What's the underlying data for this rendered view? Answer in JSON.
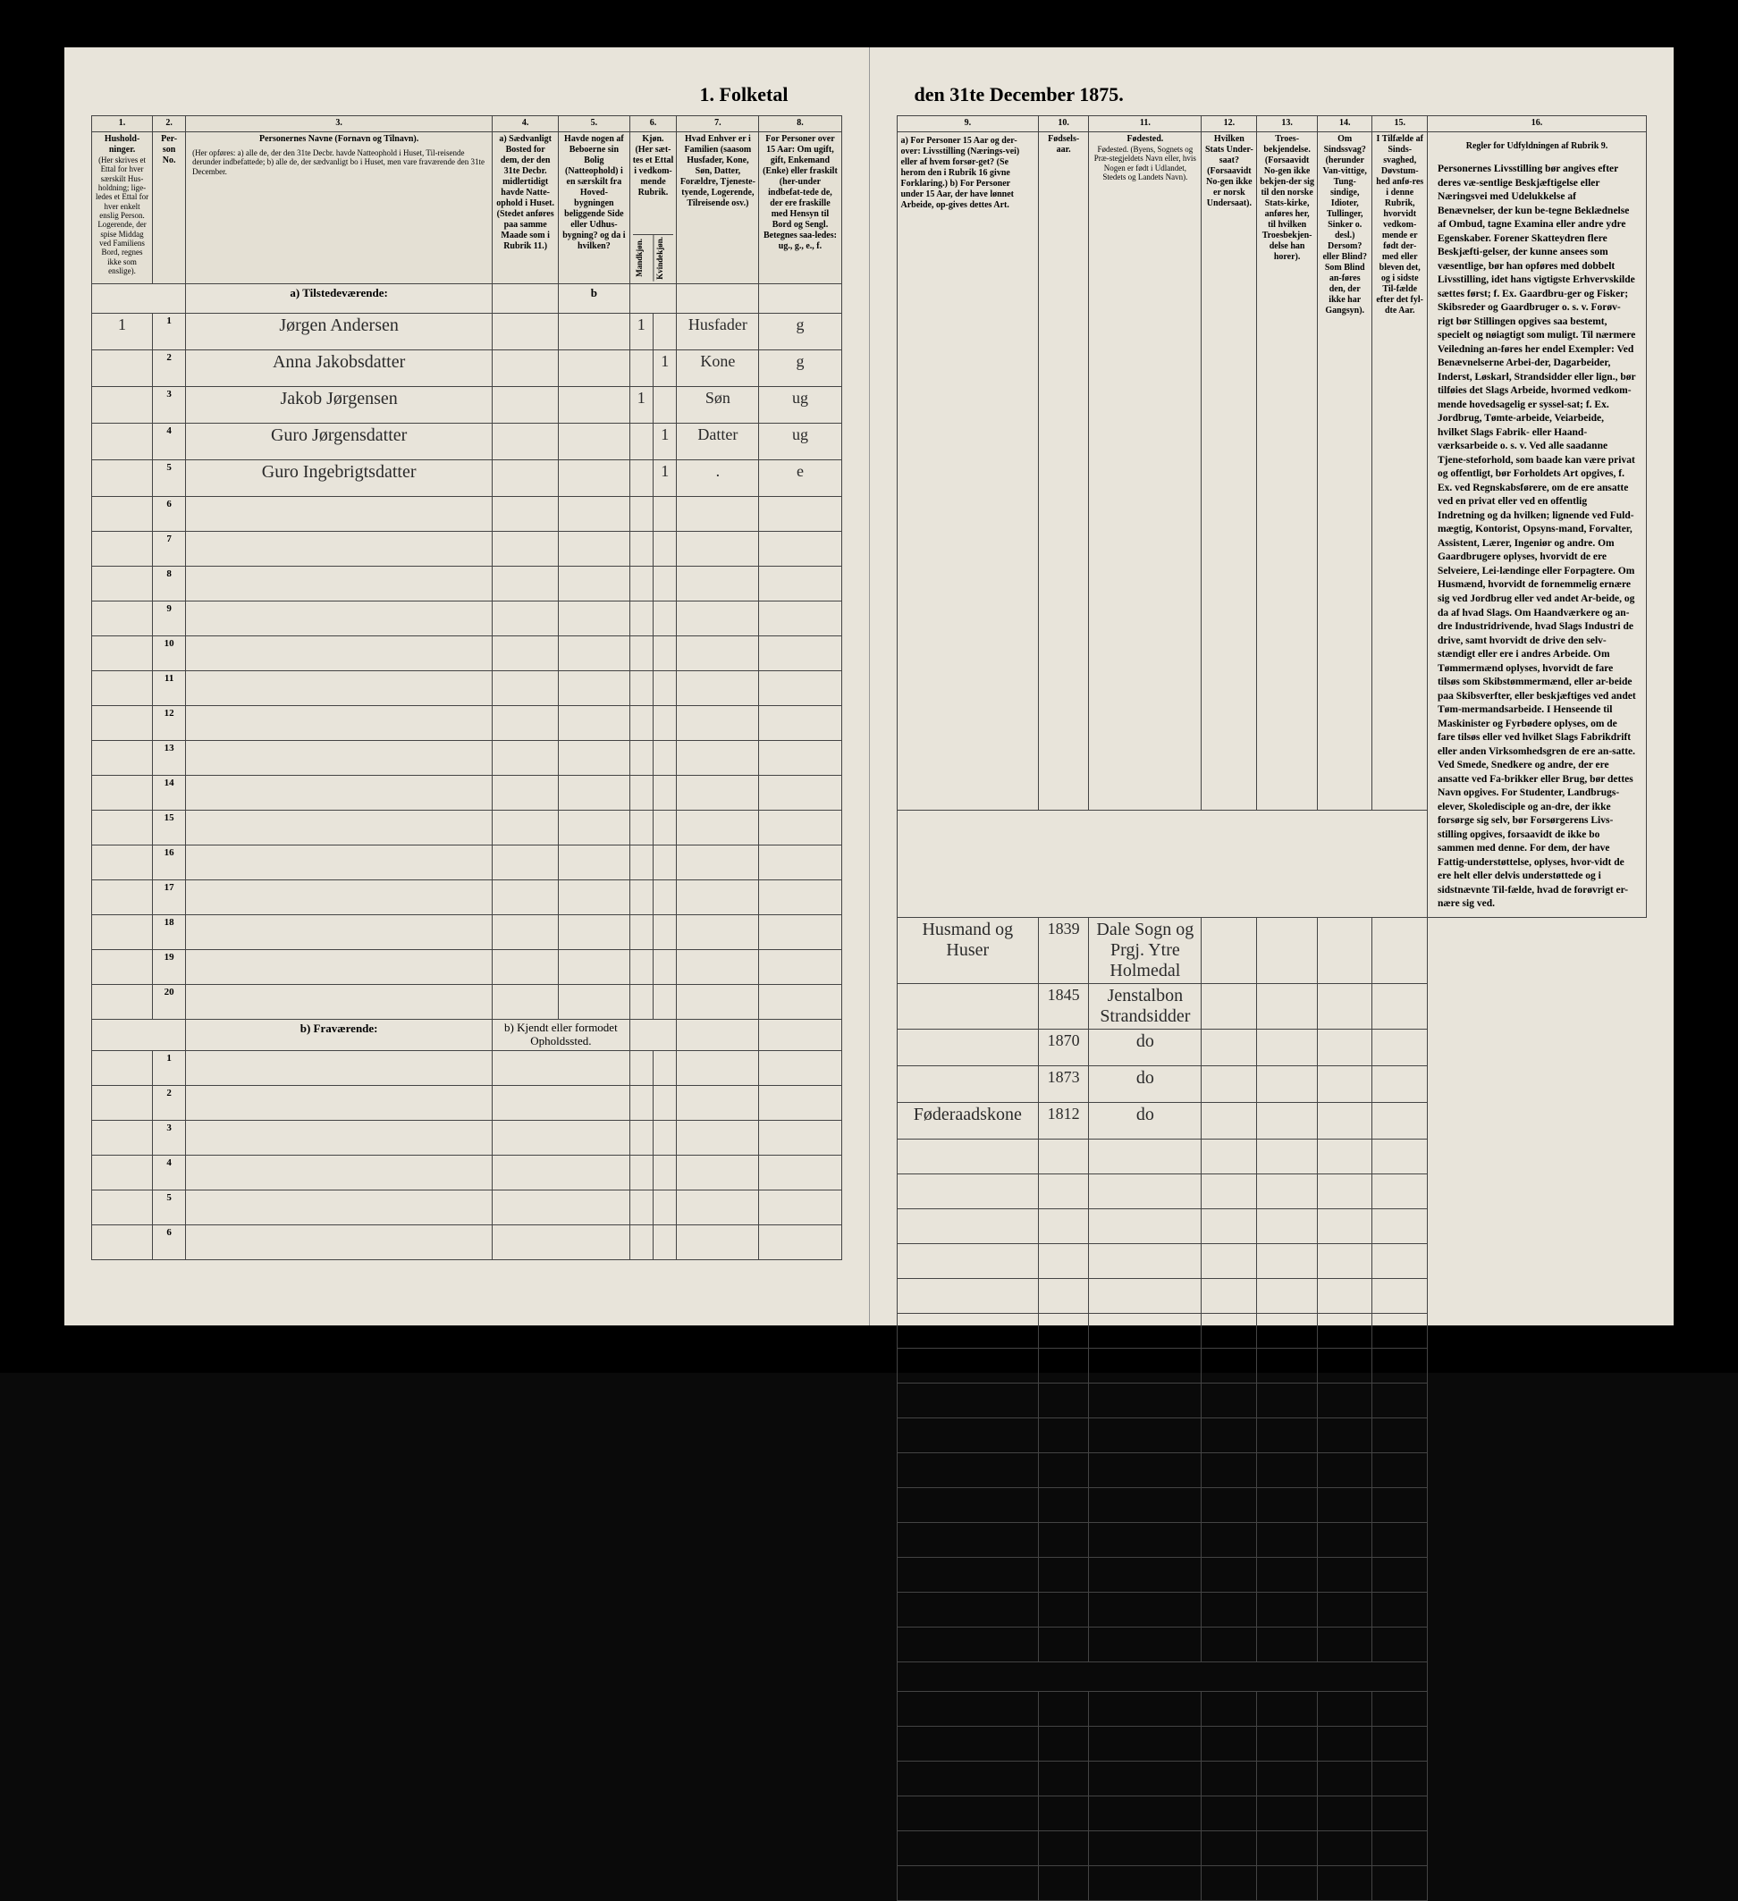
{
  "title_left": "1. Folketal",
  "title_right": "den 31te December 1875.",
  "left_cols": [
    "1.",
    "2.",
    "3.",
    "4.",
    "5.",
    "6.",
    "7.",
    "8."
  ],
  "right_cols": [
    "9.",
    "10.",
    "11.",
    "12.",
    "13.",
    "14.",
    "15.",
    "16."
  ],
  "headers_left": {
    "c1": "Hushold-\nninger.",
    "c1_sub": "(Her skrives et Ettal for hver særskilt Hus-holdning; lige-ledes et Ettal for hver enkelt enslig Person. Logerende, der spise Middag ved Familiens Bord, regnes ikke som enslige).",
    "c2": "Per-son No.",
    "c3": "Personernes Navne (Fornavn og Tilnavn).",
    "c3_sub": "(Her opføres:\na) alle de, der den 31te Decbr. havde Natteophold i Huset, Til-reisende derunder indbefattede;\nb) alle de, der sædvanligt bo i Huset, men vare fraværende den 31te December.",
    "c4": "a) Sædvanligt Bosted for dem, der den 31te Decbr. midlertidigt havde Natte-ophold i Huset. (Stedet anføres paa samme Maade som i Rubrik 11.)",
    "c5": "Havde nogen af Beboerne sin Bolig (Natteophold) i en særskilt fra Hoved-bygningen beliggende Side eller Udhus-bygning? og da i hvilken?",
    "c6": "Kjøn.\n(Her sæt-tes et Ettal i vedkom-mende Rubrik.",
    "c6a": "Mandkjøn.",
    "c6b": "Kvindekjøn.",
    "c7": "Hvad Enhver er i Familien\n(saasom Husfader, Kone, Søn, Datter, Forældre, Tjeneste-tyende, Logerende, Tilreisende osv.)",
    "c8": "For Personer over 15 Aar: Om ugift, gift, Enkemand (Enke) eller fraskilt (her-under indbefat-tede de, der ere fraskille med Hensyn til Bord og Sengl. Betegnes saa-ledes: ug., g., e., f."
  },
  "headers_right": {
    "c9": "a) For Personer 15 Aar og der-over: Livsstilling (Nærings-vei) eller af hvem forsør-get? (Se herom den i Rubrik 16 givne Forklaring.)\nb) For Personer under 15 Aar, der have lønnet Arbeide, op-gives dettes Art.",
    "c10": "Fødsels-aar.",
    "c11": "Fødested.\n(Byens, Sognets og Præ-stegjeldets Navn eller, hvis Nogen er født i Udlandet, Stedets og Landets Navn).",
    "c12": "Hvilken Stats Under-saat?\n(Forsaavidt No-gen ikke er norsk Undersaat).",
    "c13": "Troes-bekjendelse.\n(Forsaavidt No-gen ikke bekjen-der sig til den norske Stats-kirke, anføres her, til hvilken Troesbekjen-delse han horer).",
    "c14": "Om Sindssvag? (herunder Van-vittige, Tung-sindige, Idioter, Tullinger, Sinker o. desl.) Dersom? eller Blind? Som Blind an-føres den, der ikke har Gangsyn).",
    "c15": "I Tilfælde af Sinds-svaghed, Døvstum-hed anfø-res i denne Rubrik, hvorvidt vedkom-mende er født der-med eller bleven det, og i sidste Til-fælde efter det fyl-dte Aar.",
    "c16_title": "Regler for Udfyldningen\naf\nRubrik 9."
  },
  "section_a": "a) Tilstedeværende:",
  "section_b": "b) Fraværende:",
  "section_b_col4": "b) Kjendt eller formodet Opholdssted.",
  "rows": [
    {
      "n": "1",
      "hh": "1",
      "name": "Jørgen Andersen",
      "m": "1",
      "k": "",
      "fam": "Husfader",
      "civ": "g",
      "occ": "Husmand og Huser",
      "yr": "1839",
      "bp": "Dale Sogn og Prgj. Ytre Holmedal"
    },
    {
      "n": "2",
      "hh": "",
      "name": "Anna Jakobsdatter",
      "m": "",
      "k": "1",
      "fam": "Kone",
      "civ": "g",
      "occ": "",
      "yr": "1845",
      "bp": "Jenstalbon Strandsidder"
    },
    {
      "n": "3",
      "hh": "",
      "name": "Jakob Jørgensen",
      "m": "1",
      "k": "",
      "fam": "Søn",
      "civ": "ug",
      "occ": "",
      "yr": "1870",
      "bp": "do"
    },
    {
      "n": "4",
      "hh": "",
      "name": "Guro Jørgensdatter",
      "m": "",
      "k": "1",
      "fam": "Datter",
      "civ": "ug",
      "occ": "",
      "yr": "1873",
      "bp": "do"
    },
    {
      "n": "5",
      "hh": "",
      "name": "Guro Ingebrigtsdatter",
      "m": "",
      "k": "1",
      "fam": ".",
      "civ": "e",
      "occ": "Føderaadskone",
      "yr": "1812",
      "bp": "do"
    }
  ],
  "empty_left": [
    "6",
    "7",
    "8",
    "9",
    "10",
    "11",
    "12",
    "13",
    "14",
    "15",
    "16",
    "17",
    "18",
    "19",
    "20"
  ],
  "empty_b": [
    "1",
    "2",
    "3",
    "4",
    "5",
    "6"
  ],
  "rules_text": "Personernes Livsstilling bør angives efter deres væ-sentlige Beskjæftigelse eller Næringsvei med Udelukkelse af Benævnelser, der kun be-tegne Beklædnelse af Ombud, tagne Examina eller andre ydre Egenskaber. Forener Skatteydren flere Beskjæfti-gelser, der kunne ansees som væsentlige, bør han opføres med dobbelt Livsstilling, idet hans vigtigste Erhvervskilde sættes først; f. Ex. Gaardbru-ger og Fisker; Skibsreder og Gaardbruger o. s. v. Forøv-rigt bør Stillingen opgives saa bestemt, specielt og nøiagtigt som muligt.\n\nTil nærmere Veiledning an-føres her endel Exempler:\n\nVed Benævnelserne Arbei-der, Dagarbeider, Inderst, Løskarl, Strandsidder eller lign., bør tilføies det Slags Arbeide, hvormed vedkom-mende hovedsagelig er syssel-sat; f. Ex. Jordbrug, Tømte-arbeide, Veiarbeide, hvilket Slags Fabrik- eller Haand-værksarbeide o. s. v.\n\nVed alle saadanne Tjene-steforhold, som baade kan være privat og offentligt, bør Forholdets Art opgives, f. Ex. ved Regnskabsførere, om de ere ansatte ved en privat eller ved en offentlig Indretning og da hvilken; lignende ved Fuld-mægtig, Kontorist, Opsyns-mand, Forvalter, Assistent, Lærer, Ingeniør og andre.\n\nOm Gaardbrugere oplyses, hvorvidt de ere Selveiere, Lei-lændinge eller Forpagtere.\n\nOm Husmænd, hvorvidt de fornemmelig ernære sig ved Jordbrug eller ved andet Ar-beide, og da af hvad Slags.\n\nOm Haandværkere og an-dre Industridrivende, hvad Slags Industri de drive, samt hvorvidt de drive den selv-stændigt eller ere i andres Arbeide.\n\nOm Tømmermænd oplyses, hvorvidt de fare tilsøs som Skibstømmermænd, eller ar-beide paa Skibsverfter, eller beskjæftiges ved andet Tøm-mermandsarbeide.\n\nI Henseende til Maskinister og Fyrbødere oplyses, om de fare tilsøs eller ved hvilket Slags Fabrikdrift eller anden Virksomhedsgren de ere an-satte.\n\nVed Smede, Snedkere og andre, der ere ansatte ved Fa-brikker eller Brug, bør dettes Navn opgives.\n\nFor Studenter, Landbrugs-elever, Skoledisciple og an-dre, der ikke forsørge sig selv, bør Forsørgerens Livs-stilling opgives, forsaavidt de ikke bo sammen med denne.\n\nFor dem, der have Fattig-understøttelse, oplyses, hvor-vidt de ere helt eller delvis understøttede og i sidstnævnte Til-fælde, hvad de forøvrigt er-nære sig ved."
}
